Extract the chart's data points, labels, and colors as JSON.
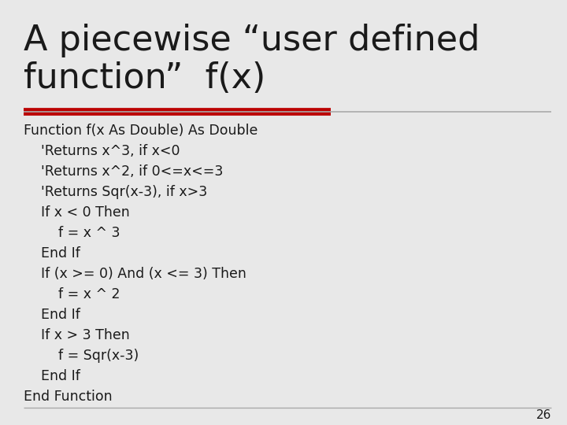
{
  "title_line1": "A piecewise “user defined",
  "title_line2": "function”  f(x)",
  "title_fontsize": 32,
  "title_color": "#1a1a1a",
  "background_color": "#e8e8e8",
  "divider_color_red": "#bb0000",
  "divider_color_gray": "#aaaaaa",
  "code_lines": [
    "Function f(x As Double) As Double",
    "    'Returns x^3, if x<0",
    "    'Returns x^2, if 0<=x<=3",
    "    'Returns Sqr(x-3), if x>3",
    "    If x < 0 Then",
    "        f = x ^ 3",
    "    End If",
    "    If (x >= 0) And (x <= 3) Then",
    "        f = x ^ 2",
    "    End If",
    "    If x > 3 Then",
    "        f = Sqr(x-3)",
    "    End If",
    "End Function"
  ],
  "code_fontsize": 12.5,
  "code_color": "#1a1a1a",
  "page_number": "26",
  "page_number_fontsize": 11,
  "bottom_line_color": "#aaaaaa"
}
